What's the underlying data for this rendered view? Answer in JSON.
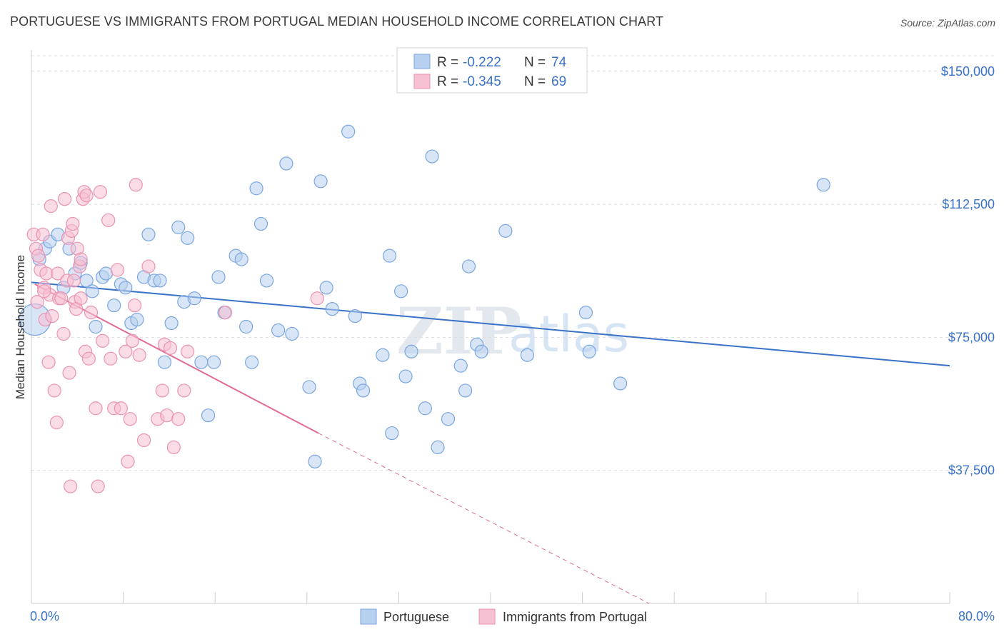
{
  "title": "PORTUGUESE VS IMMIGRANTS FROM PORTUGAL MEDIAN HOUSEHOLD INCOME CORRELATION CHART",
  "source": "Source: ZipAtlas.com",
  "colors": {
    "blue": "#3a72c8",
    "blue_fill": "#b7d0f0",
    "pink": "#e06a98",
    "pink_fill": "#f5c0d2",
    "grid": "#d9dde3"
  },
  "legend": {
    "rows": [
      {
        "r_label": "R =",
        "r_value": "-0.222",
        "n_label": "N =",
        "n_value": "74",
        "color": "blue"
      },
      {
        "r_label": "R =",
        "r_value": "-0.345",
        "n_label": "N =",
        "n_value": "69",
        "color": "pink"
      }
    ]
  },
  "watermark": {
    "zip": "ZIP",
    "atlas": "atlas"
  },
  "chart_data": {
    "type": "scatter",
    "title": "PORTUGUESE VS IMMIGRANTS FROM PORTUGAL MEDIAN HOUSEHOLD INCOME CORRELATION CHART",
    "xlabel": "",
    "ylabel": "Median Household Income",
    "xlim": [
      0,
      80
    ],
    "ylim": [
      0,
      156000
    ],
    "x_tick_labels": [
      "0.0%",
      "80.0%"
    ],
    "y_ticks": [
      37500,
      75000,
      112500,
      150000
    ],
    "y_tick_labels": [
      "$37,500",
      "$75,000",
      "$112,500",
      "$150,000"
    ],
    "grid": true,
    "legend_position": "top-center",
    "series": [
      {
        "name": "Portuguese",
        "color": "#3a72c8",
        "trend": {
          "x": [
            0,
            80
          ],
          "y": [
            90500,
            67000
          ],
          "dashed_from": null
        },
        "points": [
          [
            0.3,
            80000
          ],
          [
            0.7,
            97000
          ],
          [
            1.2,
            100000
          ],
          [
            1.6,
            102000
          ],
          [
            2.3,
            104000
          ],
          [
            2.8,
            89000
          ],
          [
            3.3,
            100000
          ],
          [
            3.8,
            93000
          ],
          [
            4.3,
            96000
          ],
          [
            4.8,
            91000
          ],
          [
            5.3,
            88000
          ],
          [
            5.6,
            78000
          ],
          [
            6.2,
            92000
          ],
          [
            6.5,
            93000
          ],
          [
            7.2,
            84000
          ],
          [
            7.8,
            90000
          ],
          [
            8.2,
            89000
          ],
          [
            8.7,
            79000
          ],
          [
            9.2,
            80000
          ],
          [
            9.8,
            92000
          ],
          [
            10.2,
            104000
          ],
          [
            10.7,
            91000
          ],
          [
            11.2,
            91000
          ],
          [
            11.6,
            68000
          ],
          [
            12.2,
            79000
          ],
          [
            12.8,
            106000
          ],
          [
            13.3,
            85000
          ],
          [
            13.6,
            103000
          ],
          [
            14.2,
            86000
          ],
          [
            14.8,
            68000
          ],
          [
            15.4,
            53000
          ],
          [
            15.9,
            68000
          ],
          [
            16.3,
            92000
          ],
          [
            16.8,
            82000
          ],
          [
            17.8,
            98000
          ],
          [
            18.3,
            97000
          ],
          [
            18.7,
            78000
          ],
          [
            19.2,
            68000
          ],
          [
            19.6,
            117000
          ],
          [
            20.0,
            107000
          ],
          [
            20.5,
            91000
          ],
          [
            21.5,
            77000
          ],
          [
            22.2,
            124000
          ],
          [
            22.7,
            76000
          ],
          [
            24.2,
            61000
          ],
          [
            24.7,
            40000
          ],
          [
            25.2,
            119000
          ],
          [
            25.7,
            89000
          ],
          [
            26.2,
            83000
          ],
          [
            27.6,
            133000
          ],
          [
            28.2,
            81000
          ],
          [
            28.6,
            62000
          ],
          [
            28.9,
            60000
          ],
          [
            30.6,
            70000
          ],
          [
            31.2,
            98000
          ],
          [
            31.4,
            48000
          ],
          [
            32.2,
            88000
          ],
          [
            32.6,
            64000
          ],
          [
            33.1,
            71000
          ],
          [
            34.3,
            55000
          ],
          [
            34.9,
            126000
          ],
          [
            35.4,
            44000
          ],
          [
            36.3,
            52000
          ],
          [
            37.4,
            67000
          ],
          [
            37.8,
            60000
          ],
          [
            38.1,
            95000
          ],
          [
            38.8,
            73000
          ],
          [
            39.2,
            71000
          ],
          [
            41.3,
            105000
          ],
          [
            43.2,
            70000
          ],
          [
            48.3,
            82000
          ],
          [
            48.6,
            71000
          ],
          [
            51.3,
            62000
          ],
          [
            69.0,
            118000
          ]
        ]
      },
      {
        "name": "Immigrants from Portugal",
        "color": "#e06a98",
        "trend": {
          "x": [
            0.3,
            25,
            55
          ],
          "y": [
            90000,
            48000,
            -2000
          ],
          "dashed_from": 25
        },
        "points": [
          [
            0.2,
            104000
          ],
          [
            0.4,
            100000
          ],
          [
            0.5,
            85000
          ],
          [
            0.6,
            98000
          ],
          [
            0.8,
            94000
          ],
          [
            1.0,
            104000
          ],
          [
            1.1,
            89000
          ],
          [
            1.2,
            80000
          ],
          [
            1.3,
            93000
          ],
          [
            1.5,
            68000
          ],
          [
            1.6,
            87000
          ],
          [
            1.7,
            112000
          ],
          [
            1.8,
            81000
          ],
          [
            2.0,
            60000
          ],
          [
            2.2,
            51000
          ],
          [
            2.3,
            93000
          ],
          [
            2.4,
            86000
          ],
          [
            2.6,
            86000
          ],
          [
            2.8,
            76000
          ],
          [
            2.9,
            114000
          ],
          [
            3.1,
            91000
          ],
          [
            3.2,
            103000
          ],
          [
            3.3,
            65000
          ],
          [
            3.4,
            33000
          ],
          [
            3.5,
            105000
          ],
          [
            3.6,
            107000
          ],
          [
            3.7,
            91000
          ],
          [
            3.8,
            85000
          ],
          [
            3.9,
            83000
          ],
          [
            4.0,
            100000
          ],
          [
            4.2,
            95000
          ],
          [
            4.3,
            86000
          ],
          [
            4.3,
            97000
          ],
          [
            4.5,
            114000
          ],
          [
            4.6,
            116000
          ],
          [
            4.7,
            71000
          ],
          [
            4.8,
            115000
          ],
          [
            5.0,
            69000
          ],
          [
            5.2,
            82000
          ],
          [
            5.6,
            55000
          ],
          [
            5.8,
            33000
          ],
          [
            6.0,
            116000
          ],
          [
            6.2,
            74000
          ],
          [
            6.7,
            108000
          ],
          [
            6.9,
            69000
          ],
          [
            7.2,
            55000
          ],
          [
            7.5,
            94000
          ],
          [
            7.8,
            55000
          ],
          [
            8.2,
            71000
          ],
          [
            8.4,
            40000
          ],
          [
            8.6,
            52000
          ],
          [
            8.8,
            74000
          ],
          [
            9.0,
            84000
          ],
          [
            9.1,
            118000
          ],
          [
            9.4,
            70000
          ],
          [
            9.8,
            46000
          ],
          [
            10.2,
            95000
          ],
          [
            11.0,
            52000
          ],
          [
            11.4,
            60000
          ],
          [
            11.6,
            73000
          ],
          [
            11.8,
            53000
          ],
          [
            12.1,
            72000
          ],
          [
            12.4,
            44000
          ],
          [
            12.8,
            52000
          ],
          [
            13.3,
            60000
          ],
          [
            13.6,
            71000
          ],
          [
            16.9,
            82000
          ],
          [
            24.9,
            86000
          ],
          [
            1.1,
            88000
          ]
        ]
      }
    ]
  },
  "bottom_legend": [
    {
      "label": "Portuguese",
      "color": "blue"
    },
    {
      "label": "Immigrants from Portugal",
      "color": "pink"
    }
  ]
}
